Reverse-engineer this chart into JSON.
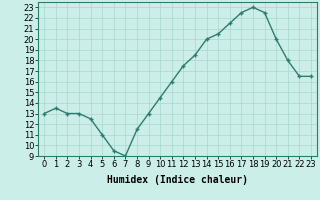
{
  "x": [
    0,
    1,
    2,
    3,
    4,
    5,
    6,
    7,
    8,
    9,
    10,
    11,
    12,
    13,
    14,
    15,
    16,
    17,
    18,
    19,
    20,
    21,
    22,
    23
  ],
  "y": [
    13,
    13.5,
    13,
    13,
    12.5,
    11,
    9.5,
    9,
    11.5,
    13,
    14.5,
    16,
    17.5,
    18.5,
    20,
    20.5,
    21.5,
    22.5,
    23,
    22.5,
    20,
    18,
    16.5,
    16.5
  ],
  "line_color": "#2d7d6e",
  "marker_color": "#2d7d6e",
  "bg_color": "#cceee8",
  "grid_color": "#a8d8d0",
  "xlabel": "Humidex (Indice chaleur)",
  "ylim": [
    9,
    23.5
  ],
  "xlim": [
    -0.5,
    23.5
  ],
  "yticks": [
    9,
    10,
    11,
    12,
    13,
    14,
    15,
    16,
    17,
    18,
    19,
    20,
    21,
    22,
    23
  ],
  "xticks": [
    0,
    1,
    2,
    3,
    4,
    5,
    6,
    7,
    8,
    9,
    10,
    11,
    12,
    13,
    14,
    15,
    16,
    17,
    18,
    19,
    20,
    21,
    22,
    23
  ],
  "font_size_label": 7,
  "font_size_tick": 6,
  "line_width": 1.0,
  "marker_size": 3.5,
  "marker_ew": 1.0
}
